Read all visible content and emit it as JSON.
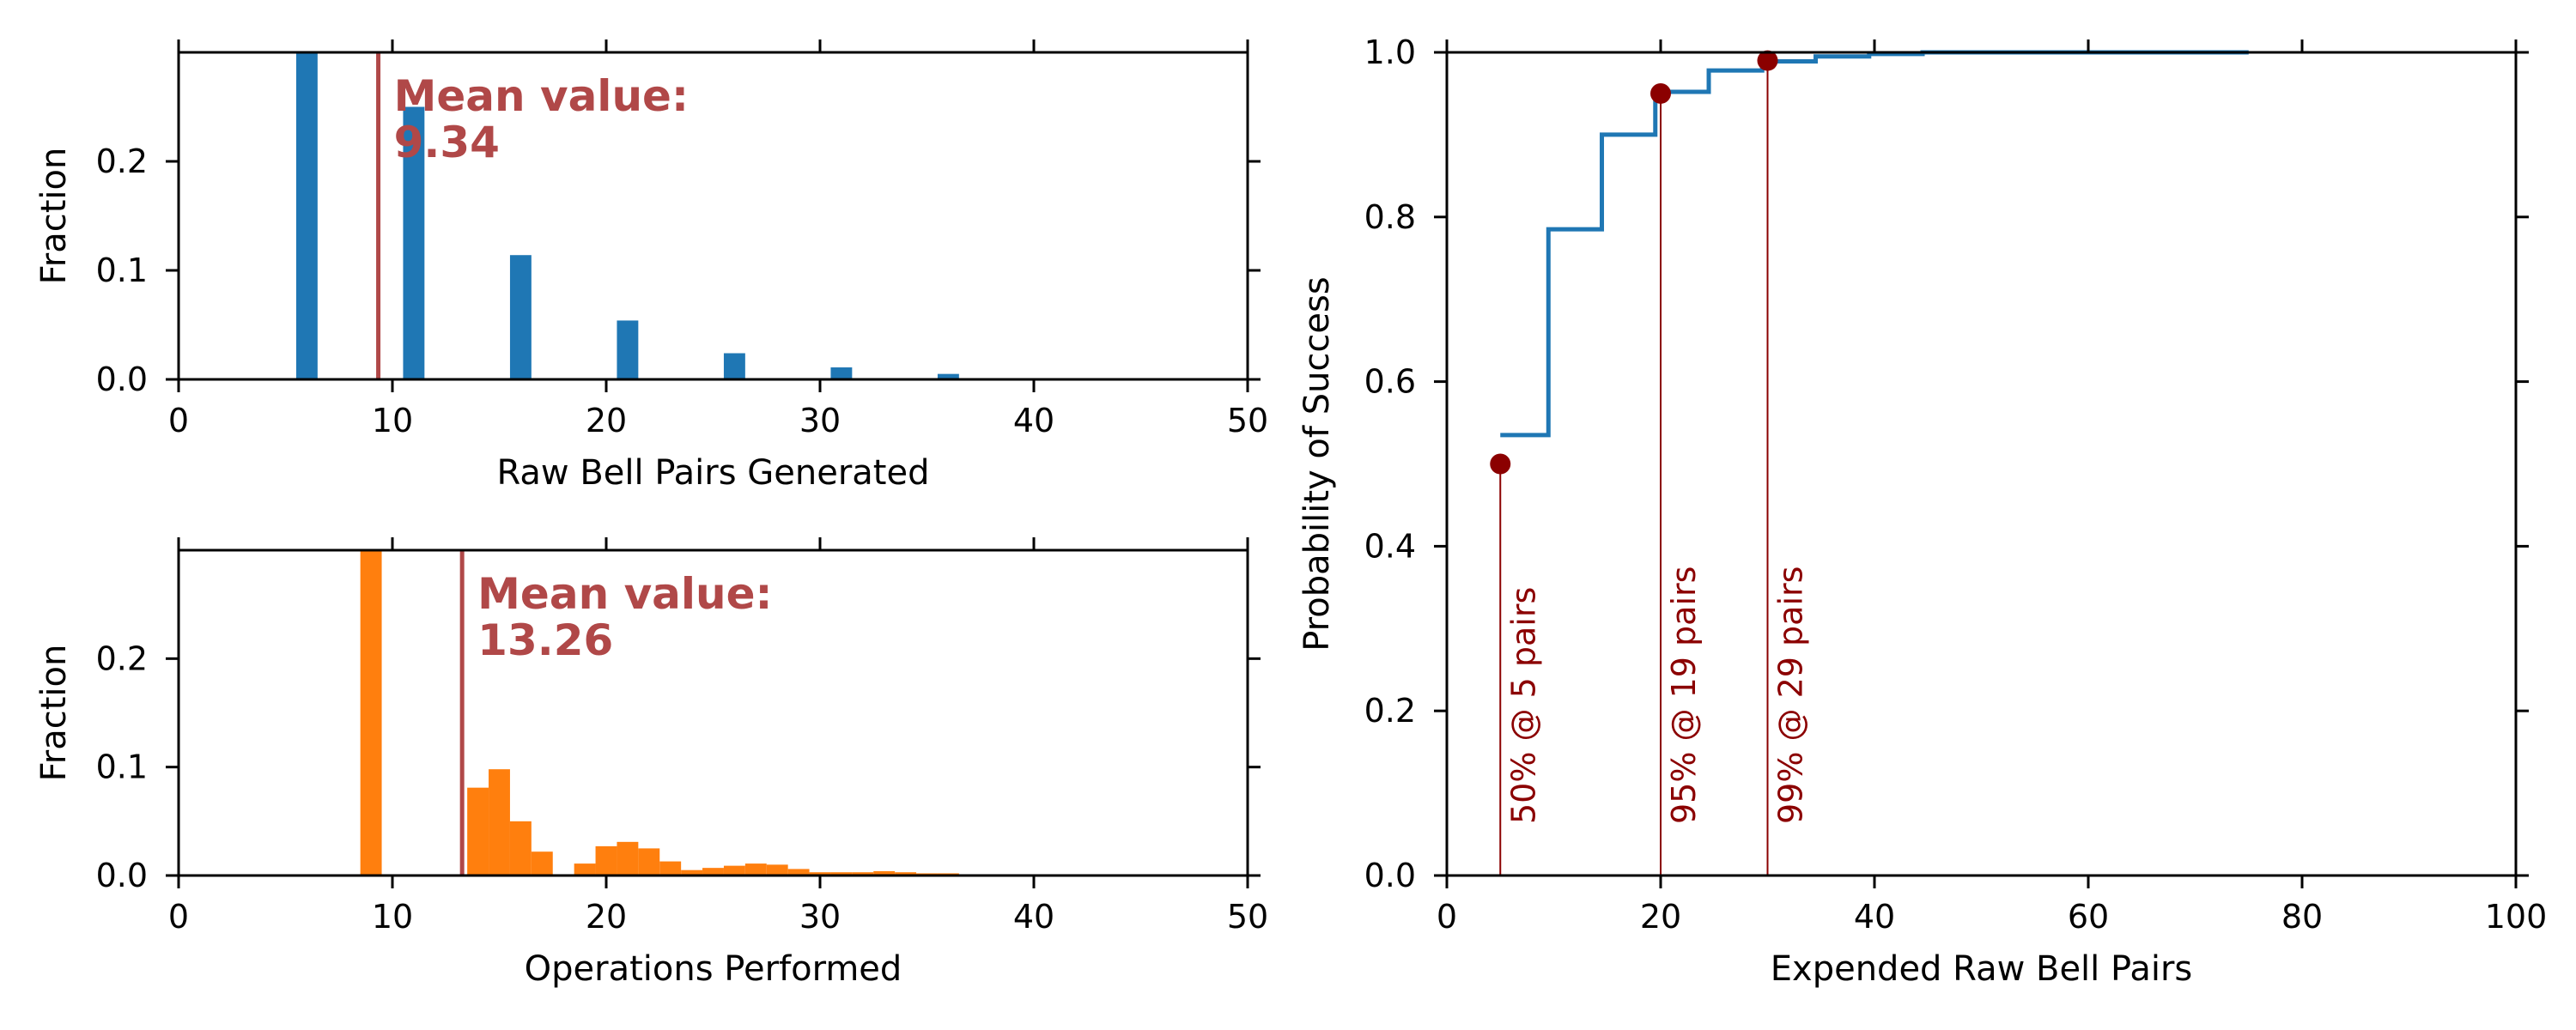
{
  "colors": {
    "hist_blue": "#1f77b4",
    "hist_orange": "#ff7f0e",
    "mean_line": "#b04848",
    "cdf_line": "#1f77b4",
    "marker": "#8b0000"
  },
  "chart_data": [
    {
      "type": "bar",
      "title": "",
      "xlabel": "Raw Bell Pairs Generated",
      "ylabel": "Fraction",
      "xlim": [
        0,
        50
      ],
      "ylim": [
        0,
        0.3
      ],
      "xticks": [
        "0",
        "10",
        "20",
        "30",
        "40",
        "50"
      ],
      "yticks": [
        "0.0",
        "0.1",
        "0.2"
      ],
      "series": [
        {
          "bin_width": 1,
          "bins": [
            {
              "x": 6,
              "value": 0.3
            },
            {
              "x": 11,
              "value": 0.25
            },
            {
              "x": 16,
              "value": 0.114
            },
            {
              "x": 21,
              "value": 0.054
            },
            {
              "x": 26,
              "value": 0.024
            },
            {
              "x": 31,
              "value": 0.011
            },
            {
              "x": 36,
              "value": 0.005
            }
          ]
        }
      ],
      "mean": {
        "value": 9.34,
        "label_line1": "Mean value:",
        "label_line2": "9.34"
      }
    },
    {
      "type": "bar",
      "title": "",
      "xlabel": "Operations Performed",
      "ylabel": "Fraction",
      "xlim": [
        0,
        50
      ],
      "ylim": [
        0,
        0.3
      ],
      "xticks": [
        "0",
        "10",
        "20",
        "30",
        "40",
        "50"
      ],
      "yticks": [
        "0.0",
        "0.1",
        "0.2"
      ],
      "series": [
        {
          "bin_width": 1,
          "bins": [
            {
              "x": 9,
              "value": 0.3
            },
            {
              "x": 14,
              "value": 0.081
            },
            {
              "x": 15,
              "value": 0.098
            },
            {
              "x": 16,
              "value": 0.05
            },
            {
              "x": 17,
              "value": 0.022
            },
            {
              "x": 19,
              "value": 0.011
            },
            {
              "x": 20,
              "value": 0.027
            },
            {
              "x": 21,
              "value": 0.031
            },
            {
              "x": 22,
              "value": 0.025
            },
            {
              "x": 23,
              "value": 0.013
            },
            {
              "x": 24,
              "value": 0.005
            },
            {
              "x": 25,
              "value": 0.007
            },
            {
              "x": 26,
              "value": 0.009
            },
            {
              "x": 27,
              "value": 0.011
            },
            {
              "x": 28,
              "value": 0.01
            },
            {
              "x": 29,
              "value": 0.006
            },
            {
              "x": 30,
              "value": 0.003
            },
            {
              "x": 31,
              "value": 0.003
            },
            {
              "x": 32,
              "value": 0.003
            },
            {
              "x": 33,
              "value": 0.004
            },
            {
              "x": 34,
              "value": 0.003
            },
            {
              "x": 35,
              "value": 0.002
            },
            {
              "x": 36,
              "value": 0.002
            },
            {
              "x": 37,
              "value": 0.001
            },
            {
              "x": 38,
              "value": 0.001
            },
            {
              "x": 39,
              "value": 0.001
            },
            {
              "x": 40,
              "value": 0.001
            }
          ]
        }
      ],
      "mean": {
        "value": 13.26,
        "label_line1": "Mean value:",
        "label_line2": "13.26"
      }
    },
    {
      "type": "line",
      "title": "",
      "xlabel": "Expended Raw Bell Pairs",
      "ylabel": "Probability of Success",
      "xlim": [
        0,
        100
      ],
      "ylim": [
        0,
        1.0
      ],
      "xticks": [
        "0",
        "20",
        "40",
        "60",
        "80",
        "100"
      ],
      "yticks": [
        "0.0",
        "0.2",
        "0.4",
        "0.6",
        "0.8",
        "1.0"
      ],
      "step_x": [
        5,
        9.5,
        9.5,
        14.5,
        14.5,
        19.5,
        19.5,
        24.5,
        24.5,
        29.5,
        29.5,
        34.5,
        34.5,
        39.5,
        39.5,
        44.5,
        44.5,
        75
      ],
      "step_y": [
        0.535,
        0.535,
        0.785,
        0.785,
        0.9,
        0.9,
        0.952,
        0.952,
        0.978,
        0.978,
        0.989,
        0.989,
        0.995,
        0.995,
        0.998,
        0.998,
        1.0,
        1.0
      ],
      "annotations": [
        {
          "x": 5,
          "y": 0.5,
          "label": "50% @ 5 pairs"
        },
        {
          "x": 20,
          "y": 0.95,
          "label": "95% @ 19 pairs"
        },
        {
          "x": 30,
          "y": 0.99,
          "label": "99% @ 29 pairs"
        }
      ]
    }
  ]
}
